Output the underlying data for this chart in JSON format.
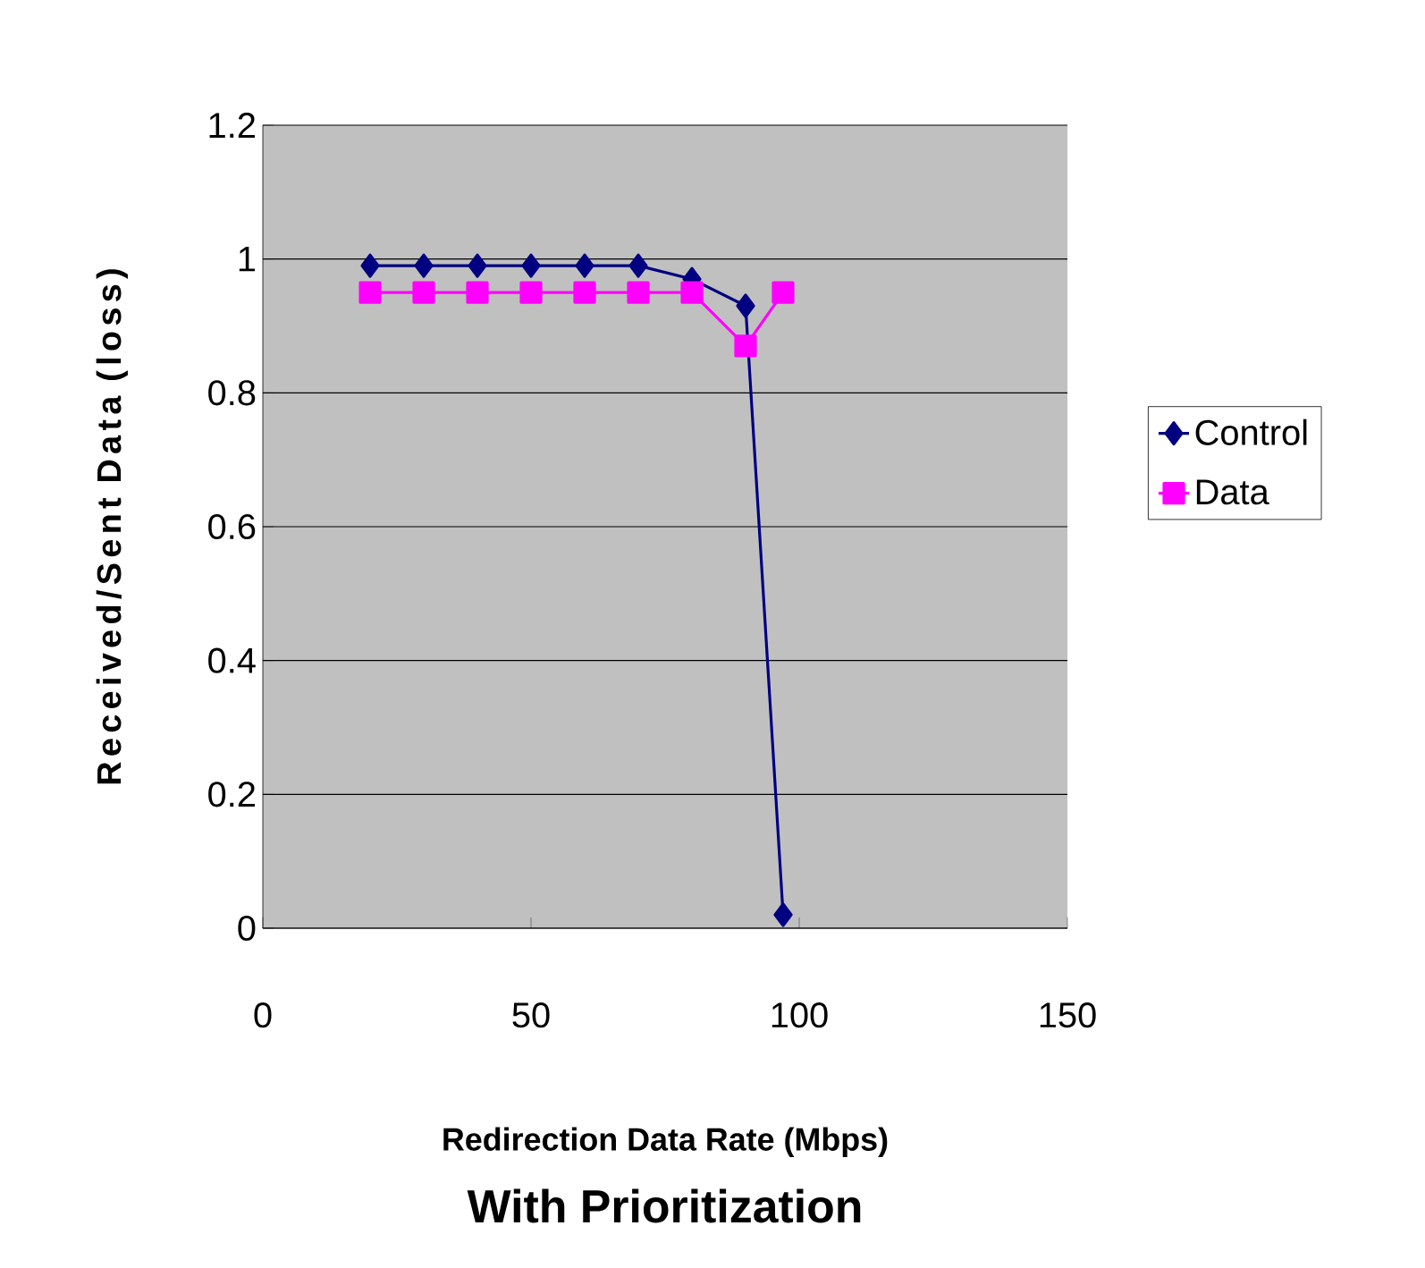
{
  "chart_data": {
    "type": "line",
    "title": "With Prioritization",
    "xlabel": "Redirection Data Rate (Mbps)",
    "ylabel": "Received/Sent Data (loss)",
    "x": [
      20,
      30,
      40,
      50,
      60,
      70,
      80,
      90,
      97
    ],
    "series": [
      {
        "name": "Control",
        "color": "#000080",
        "marker": "diamond",
        "values": [
          0.99,
          0.99,
          0.99,
          0.99,
          0.99,
          0.99,
          0.97,
          0.93,
          0.02
        ]
      },
      {
        "name": "Data",
        "color": "#ff00ff",
        "marker": "square",
        "values": [
          0.95,
          0.95,
          0.95,
          0.95,
          0.95,
          0.95,
          0.95,
          0.87,
          0.95
        ]
      }
    ],
    "xlim": [
      0,
      150
    ],
    "xticks": [
      0,
      50,
      100,
      150
    ],
    "ylim": [
      0,
      1.2
    ],
    "yticks": [
      0,
      0.2,
      0.4,
      0.6,
      0.8,
      1,
      1.2
    ],
    "grid": "y",
    "legend": "right"
  }
}
